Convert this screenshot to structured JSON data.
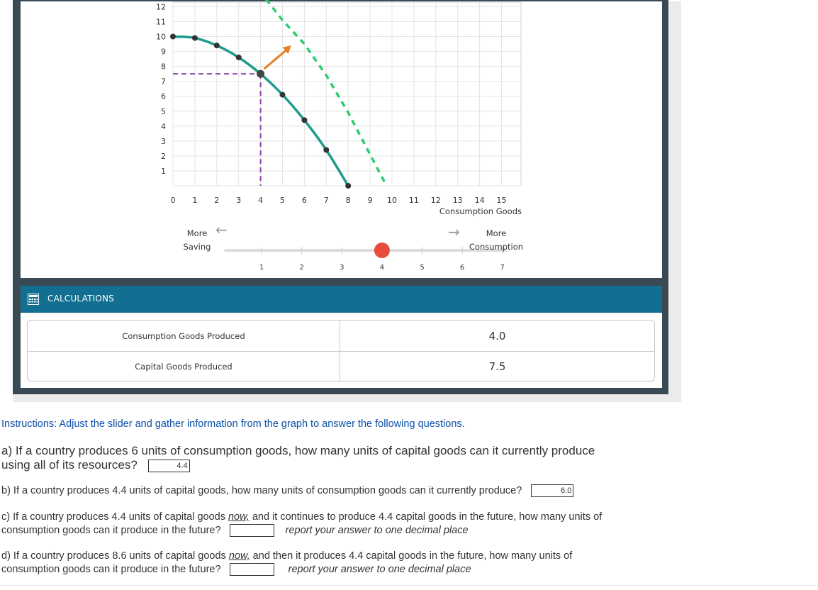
{
  "chart_data": {
    "type": "line",
    "x_ticks": [
      "0",
      "1",
      "2",
      "3",
      "4",
      "5",
      "6",
      "7",
      "8",
      "9",
      "10",
      "11",
      "12",
      "13",
      "14",
      "15"
    ],
    "y_ticks": [
      "1",
      "2",
      "3",
      "4",
      "5",
      "6",
      "7",
      "8",
      "9",
      "10",
      "11",
      "12"
    ],
    "xlabel": "Consumption Goods",
    "ylabel": "",
    "xlim": [
      0,
      15
    ],
    "ylim": [
      0,
      12
    ],
    "series": [
      {
        "role": "current production possibilities frontier",
        "color": "#1f9c8c",
        "style": "solid",
        "points": [
          [
            0,
            10
          ],
          [
            1,
            9.9
          ],
          [
            2,
            9.4
          ],
          [
            3,
            8.6
          ],
          [
            4,
            7.5
          ],
          [
            5,
            6.1
          ],
          [
            6,
            4.4
          ],
          [
            7,
            2.4
          ],
          [
            8,
            0
          ]
        ]
      },
      {
        "role": "future production possibilities frontier",
        "color": "#2ecc71",
        "style": "dashed",
        "points": [
          [
            4.25,
            12.5
          ],
          [
            5,
            11.1
          ],
          [
            6,
            9.5
          ],
          [
            7,
            7.4
          ],
          [
            8,
            4.9
          ],
          [
            9,
            2.1
          ],
          [
            9.75,
            0
          ]
        ]
      }
    ],
    "selected_point": {
      "x": 4,
      "y": 7.5
    },
    "guide_color": "#8e44ad",
    "arrow": {
      "from": [
        4,
        7.5
      ],
      "to": [
        5.4,
        9.4
      ],
      "color": "#e67e22"
    },
    "grid": true
  },
  "slider": {
    "left_label_line1": "More",
    "left_label_line2": "Saving",
    "right_label_line1": "More",
    "right_label_line2": "Consumption",
    "left_arrow": "←",
    "right_arrow": "→",
    "ticks": [
      "1",
      "2",
      "3",
      "4",
      "5",
      "6",
      "7"
    ],
    "value": 4,
    "handle_color": "#e74c3c"
  },
  "calculations": {
    "title": "CALCULATIONS",
    "rows": [
      {
        "label": "Consumption Goods Produced",
        "value": "4.0"
      },
      {
        "label": "Capital Goods Produced",
        "value": "7.5"
      }
    ]
  },
  "questions": {
    "instructions": "Instructions: Adjust the slider and gather information from the graph to answer the following questions.",
    "a_text_line1": "a) If a country produces 6 units of consumption goods, how many units of capital goods can it currently produce",
    "a_text_line2": "using all of its resources?",
    "a_answer": "4.4",
    "b_text": "b) If a country produces 4.4 units of capital goods, how many units of consumption goods can it currently produce?",
    "b_answer": "6.0",
    "c_text_pre": "c) If a country produces 4.4 units of capital goods ",
    "c_now": "now,",
    "c_text_post": " and it continues to produce 4.4 capital goods in the future, how many units of",
    "c_text_line2": "consumption goods can it produce in the future?",
    "c_answer": "",
    "c_note": "report your answer to one decimal place",
    "d_text_pre": "d) If a country produces 8.6 units of capital goods ",
    "d_now": "now,",
    "d_text_post": " and then it produces 4.4 capital goods in the future, how many units of",
    "d_text_line2": "consumption goods can it produce in the future?",
    "d_answer": "",
    "d_note": "report your answer to one decimal place"
  }
}
